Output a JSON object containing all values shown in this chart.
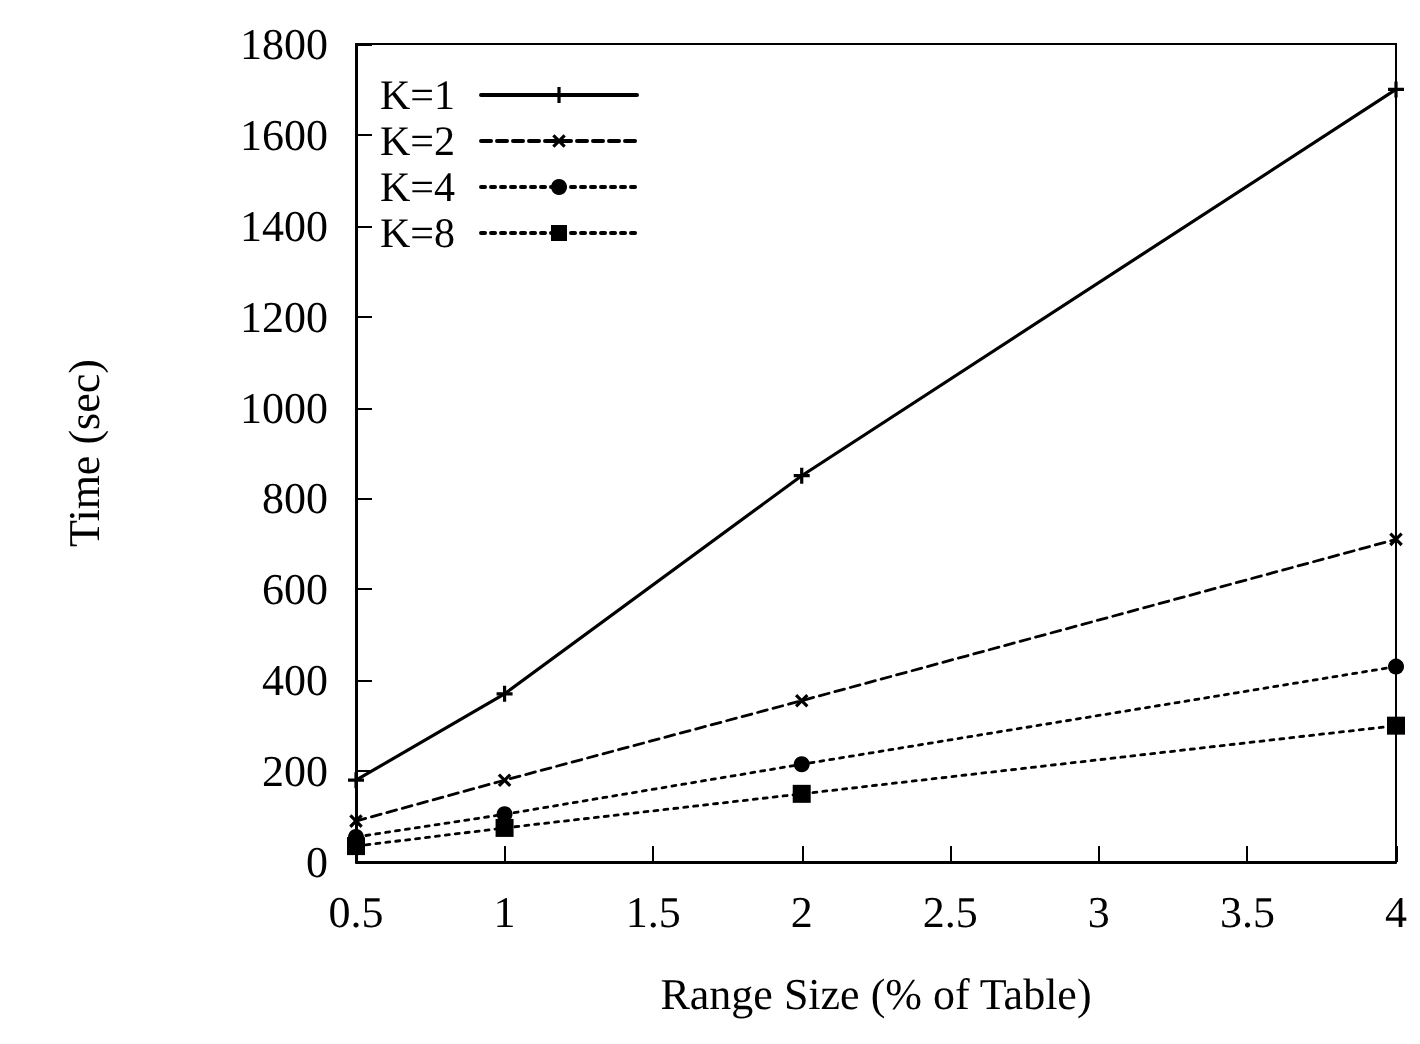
{
  "chart_data": {
    "type": "line",
    "xlabel": "Range Size (% of Table)",
    "ylabel": "Time (sec)",
    "x": [
      0.5,
      1,
      2,
      4
    ],
    "series": [
      {
        "name": "K=1",
        "color": "#000000",
        "marker": "plus",
        "line_style": "solid",
        "values": [
          180,
          370,
          850,
          1700
        ]
      },
      {
        "name": "K=2",
        "color": "#000000",
        "marker": "cross",
        "line_style": "dashed",
        "values": [
          90,
          180,
          355,
          710
        ]
      },
      {
        "name": "K=4",
        "color": "#000000",
        "marker": "circle",
        "line_style": "dotted",
        "values": [
          55,
          105,
          215,
          430
        ]
      },
      {
        "name": "K=8",
        "color": "#000000",
        "marker": "square",
        "line_style": "dotted",
        "values": [
          35,
          75,
          150,
          300
        ]
      }
    ],
    "xlim": [
      0.5,
      4
    ],
    "xticks": [
      0.5,
      1,
      1.5,
      2,
      2.5,
      3,
      3.5,
      4
    ],
    "ylim": [
      0,
      1800
    ],
    "yticks": [
      0,
      200,
      400,
      600,
      800,
      1000,
      1200,
      1400,
      1600,
      1800
    ],
    "grid": false,
    "legend": "top left"
  }
}
